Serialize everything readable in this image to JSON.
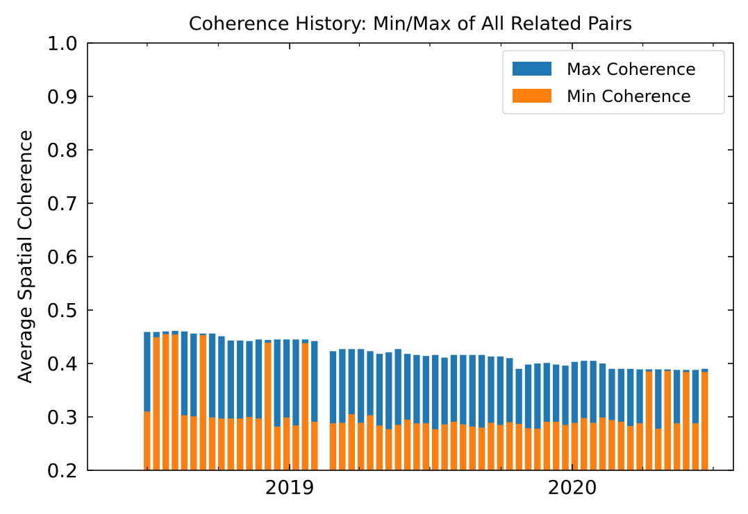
{
  "chart_data": {
    "type": "bar",
    "title": "Coherence History: Min/Max of All Related Pairs",
    "xlabel": "",
    "ylabel": "Average Spatial Coherence",
    "ylim": [
      0.2,
      1.0
    ],
    "yticks": [
      "0.2",
      "0.3",
      "0.4",
      "0.5",
      "0.6",
      "0.7",
      "0.8",
      "0.9",
      "1.0"
    ],
    "xlim": [
      "2018-04-15",
      "2020-07-27"
    ],
    "xticks": [
      {
        "date": "2019-01-01",
        "label": "2019"
      },
      {
        "date": "2020-01-01",
        "label": "2020"
      }
    ],
    "legend_position": "top-right",
    "grid": false,
    "colors": {
      "max": "#1f77b4",
      "min": "#ff7f0e"
    },
    "series": [
      {
        "name": "Max Coherence",
        "dates": [
          "2018-07-01",
          "2018-07-13",
          "2018-07-25",
          "2018-08-06",
          "2018-08-18",
          "2018-08-30",
          "2018-09-11",
          "2018-09-23",
          "2018-10-05",
          "2018-10-17",
          "2018-10-29",
          "2018-11-10",
          "2018-11-22",
          "2018-12-04",
          "2018-12-16",
          "2018-12-28",
          "2019-01-09",
          "2019-01-21",
          "2019-02-02",
          "2019-02-26",
          "2019-03-10",
          "2019-03-22",
          "2019-04-03",
          "2019-04-15",
          "2019-04-27",
          "2019-05-09",
          "2019-05-21",
          "2019-06-02",
          "2019-06-14",
          "2019-06-26",
          "2019-07-08",
          "2019-07-20",
          "2019-08-01",
          "2019-08-13",
          "2019-08-25",
          "2019-09-06",
          "2019-09-18",
          "2019-09-30",
          "2019-10-12",
          "2019-10-24",
          "2019-11-05",
          "2019-11-17",
          "2019-11-29",
          "2019-12-11",
          "2019-12-23",
          "2020-01-04",
          "2020-01-16",
          "2020-01-28",
          "2020-02-09",
          "2020-02-21",
          "2020-03-04",
          "2020-03-16",
          "2020-03-28",
          "2020-04-09",
          "2020-04-21",
          "2020-05-03",
          "2020-05-15",
          "2020-05-27",
          "2020-06-08",
          "2020-06-20"
        ],
        "values": [
          0.459,
          0.459,
          0.46,
          0.461,
          0.46,
          0.456,
          0.456,
          0.456,
          0.451,
          0.443,
          0.443,
          0.442,
          0.445,
          0.444,
          0.445,
          0.445,
          0.445,
          0.445,
          0.442,
          0.423,
          0.427,
          0.427,
          0.427,
          0.423,
          0.418,
          0.421,
          0.427,
          0.418,
          0.416,
          0.414,
          0.416,
          0.411,
          0.416,
          0.416,
          0.416,
          0.416,
          0.413,
          0.413,
          0.41,
          0.39,
          0.398,
          0.4,
          0.401,
          0.398,
          0.396,
          0.403,
          0.405,
          0.405,
          0.4,
          0.39,
          0.39,
          0.39,
          0.389,
          0.389,
          0.389,
          0.389,
          0.388,
          0.388,
          0.388,
          0.39
        ]
      },
      {
        "name": "Min Coherence",
        "dates": [
          "2018-07-01",
          "2018-07-13",
          "2018-07-25",
          "2018-08-06",
          "2018-08-18",
          "2018-08-30",
          "2018-09-11",
          "2018-09-23",
          "2018-10-05",
          "2018-10-17",
          "2018-10-29",
          "2018-11-10",
          "2018-11-22",
          "2018-12-04",
          "2018-12-16",
          "2018-12-28",
          "2019-01-09",
          "2019-01-21",
          "2019-02-02",
          "2019-02-26",
          "2019-03-10",
          "2019-03-22",
          "2019-04-03",
          "2019-04-15",
          "2019-04-27",
          "2019-05-09",
          "2019-05-21",
          "2019-06-02",
          "2019-06-14",
          "2019-06-26",
          "2019-07-08",
          "2019-07-20",
          "2019-08-01",
          "2019-08-13",
          "2019-08-25",
          "2019-09-06",
          "2019-09-18",
          "2019-09-30",
          "2019-10-12",
          "2019-10-24",
          "2019-11-05",
          "2019-11-17",
          "2019-11-29",
          "2019-12-11",
          "2019-12-23",
          "2020-01-04",
          "2020-01-16",
          "2020-01-28",
          "2020-02-09",
          "2020-02-21",
          "2020-03-04",
          "2020-03-16",
          "2020-03-28",
          "2020-04-09",
          "2020-04-21",
          "2020-05-03",
          "2020-05-15",
          "2020-05-27",
          "2020-06-08",
          "2020-06-20"
        ],
        "values": [
          0.31,
          0.449,
          0.455,
          0.454,
          0.303,
          0.301,
          0.453,
          0.299,
          0.297,
          0.297,
          0.297,
          0.3,
          0.297,
          0.439,
          0.282,
          0.299,
          0.284,
          0.438,
          0.291,
          0.288,
          0.289,
          0.305,
          0.289,
          0.303,
          0.284,
          0.277,
          0.285,
          0.295,
          0.288,
          0.288,
          0.277,
          0.286,
          0.291,
          0.286,
          0.282,
          0.28,
          0.289,
          0.285,
          0.29,
          0.287,
          0.279,
          0.278,
          0.291,
          0.291,
          0.285,
          0.289,
          0.298,
          0.289,
          0.299,
          0.294,
          0.291,
          0.283,
          0.288,
          0.385,
          0.278,
          0.386,
          0.288,
          0.384,
          0.288,
          0.384
        ]
      }
    ]
  }
}
